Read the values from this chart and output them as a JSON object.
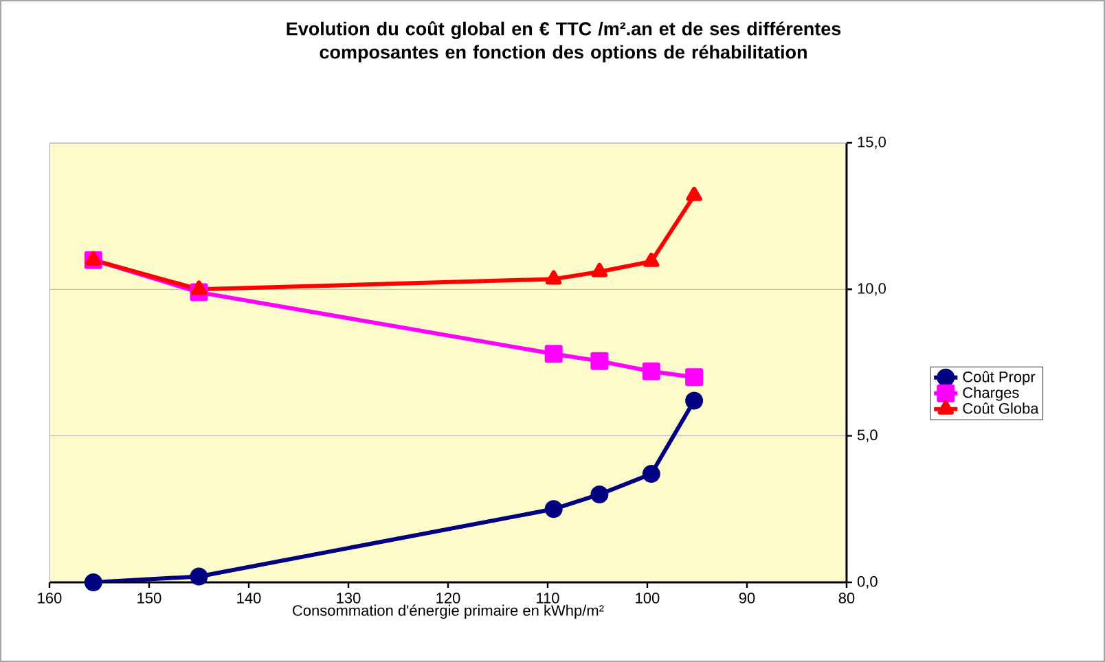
{
  "chart_data": {
    "type": "line",
    "title": "Evolution du coût global en € TTC /m².an et de ses différentes composantes en fonction des options de réhabilitation",
    "xlabel": "Consommation d'énergie primaire en kWhp/m²",
    "x": [
      155.6,
      145,
      109.4,
      104.8,
      99.6,
      95.3
    ],
    "series": [
      {
        "name": "Coût Propr",
        "color": "#000080",
        "marker": "circle",
        "values": [
          0.0,
          0.2,
          2.5,
          3.0,
          3.7,
          6.2
        ]
      },
      {
        "name": "Charges",
        "color": "#ff00ff",
        "marker": "square",
        "values": [
          11.0,
          9.9,
          7.8,
          7.55,
          7.2,
          7.0
        ]
      },
      {
        "name": "Coût Globa",
        "color": "#ff0000",
        "marker": "triangle",
        "values": [
          11.0,
          10.0,
          10.35,
          10.6,
          10.95,
          13.2
        ]
      }
    ],
    "xlim": [
      160,
      80
    ],
    "xticks": [
      160,
      150,
      140,
      130,
      120,
      110,
      100,
      90,
      80
    ],
    "ylim": [
      0,
      15
    ],
    "yticks": [
      {
        "value": 0,
        "label": "0,0"
      },
      {
        "value": 5,
        "label": "5,0"
      },
      {
        "value": 10,
        "label": "10,0"
      },
      {
        "value": 15,
        "label": "15,0"
      }
    ],
    "grid": "y",
    "legend": "right",
    "line_style": "solid"
  }
}
